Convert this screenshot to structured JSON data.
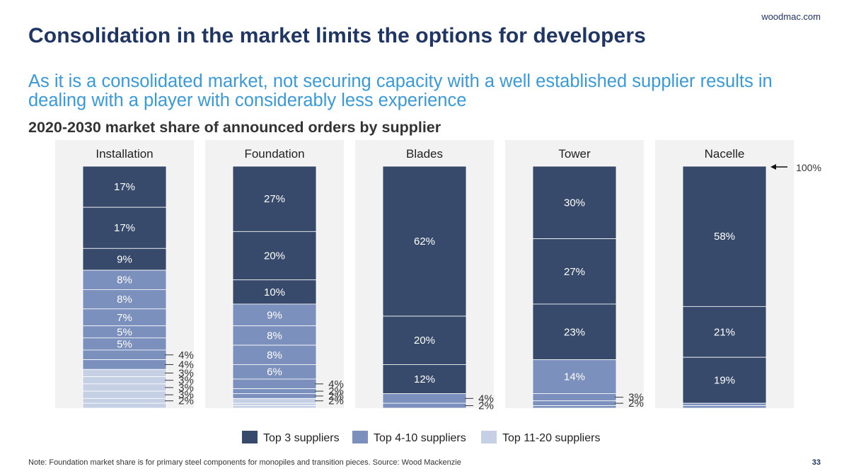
{
  "header": {
    "site": "woodmac.com",
    "title": "Consolidation in the market limits the options for developers",
    "subtitle": "As it is a consolidated market, not securing capacity with a well established supplier results in dealing with a player with considerably less experience"
  },
  "footer": {
    "note": "Note: Foundation market share is for primary steel components for monopiles and transition pieces. Source: Wood Mackenzie",
    "page": "33"
  },
  "colors": {
    "top3": "#374a6b",
    "top4_10": "#7b90bc",
    "top11_20": "#c6d0e5",
    "panel": "#f2f2f2"
  },
  "chart_data": {
    "type": "bar",
    "stacked": true,
    "title": "2020-2030 market share of announced orders by supplier",
    "ylim": [
      0,
      100
    ],
    "total_label": "100%",
    "legend": {
      "placement": "bottom",
      "entries": [
        {
          "name": "Top 3 suppliers",
          "key": "top3"
        },
        {
          "name": "Top 4-10 suppliers",
          "key": "top4_10"
        },
        {
          "name": "Top 11-20 suppliers",
          "key": "top11_20"
        }
      ]
    },
    "categories": [
      {
        "name": "Installation",
        "segments": [
          {
            "value": 17,
            "group": "top3",
            "label": "17%"
          },
          {
            "value": 17,
            "group": "top3",
            "label": "17%"
          },
          {
            "value": 9,
            "group": "top3",
            "label": "9%"
          },
          {
            "value": 8,
            "group": "top4_10",
            "label": "8%"
          },
          {
            "value": 8,
            "group": "top4_10",
            "label": "8%"
          },
          {
            "value": 7,
            "group": "top4_10",
            "label": "7%"
          },
          {
            "value": 5,
            "group": "top4_10",
            "label": "5%"
          },
          {
            "value": 5,
            "group": "top4_10",
            "label": "5%"
          },
          {
            "value": 4,
            "group": "top4_10",
            "label": "4%"
          },
          {
            "value": 4,
            "group": "top4_10",
            "label": "4%"
          },
          {
            "value": 3,
            "group": "top11_20",
            "label": "3%"
          },
          {
            "value": 3,
            "group": "top11_20",
            "label": "3%"
          },
          {
            "value": 3,
            "group": "top11_20",
            "label": "3%"
          },
          {
            "value": 3,
            "group": "top11_20",
            "label": "3%"
          },
          {
            "value": 2,
            "group": "top11_20",
            "label": "2%"
          },
          {
            "value": 2,
            "group": "top11_20",
            "label": ""
          }
        ]
      },
      {
        "name": "Foundation",
        "segments": [
          {
            "value": 27,
            "group": "top3",
            "label": "27%"
          },
          {
            "value": 20,
            "group": "top3",
            "label": "20%"
          },
          {
            "value": 10,
            "group": "top3",
            "label": "10%"
          },
          {
            "value": 9,
            "group": "top4_10",
            "label": "9%"
          },
          {
            "value": 8,
            "group": "top4_10",
            "label": "8%"
          },
          {
            "value": 8,
            "group": "top4_10",
            "label": "8%"
          },
          {
            "value": 6,
            "group": "top4_10",
            "label": "6%"
          },
          {
            "value": 4,
            "group": "top4_10",
            "label": "4%"
          },
          {
            "value": 2,
            "group": "top4_10",
            "label": "2%"
          },
          {
            "value": 2,
            "group": "top4_10",
            "label": "2%"
          },
          {
            "value": 2,
            "group": "top11_20",
            "label": "2%"
          },
          {
            "value": 1,
            "group": "top11_20",
            "label": ""
          },
          {
            "value": 1,
            "group": "top11_20",
            "label": ""
          }
        ]
      },
      {
        "name": "Blades",
        "segments": [
          {
            "value": 62,
            "group": "top3",
            "label": "62%"
          },
          {
            "value": 20,
            "group": "top3",
            "label": "20%"
          },
          {
            "value": 12,
            "group": "top3",
            "label": "12%"
          },
          {
            "value": 4,
            "group": "top4_10",
            "label": "4%"
          },
          {
            "value": 2,
            "group": "top4_10",
            "label": "2%"
          }
        ]
      },
      {
        "name": "Tower",
        "segments": [
          {
            "value": 30,
            "group": "top3",
            "label": "30%"
          },
          {
            "value": 27,
            "group": "top3",
            "label": "27%"
          },
          {
            "value": 23,
            "group": "top3",
            "label": "23%"
          },
          {
            "value": 14,
            "group": "top4_10",
            "label": "14%"
          },
          {
            "value": 3,
            "group": "top4_10",
            "label": "3%"
          },
          {
            "value": 2,
            "group": "top4_10",
            "label": "2%"
          },
          {
            "value": 1,
            "group": "top4_10",
            "label": ""
          }
        ]
      },
      {
        "name": "Nacelle",
        "segments": [
          {
            "value": 58,
            "group": "top3",
            "label": "58%"
          },
          {
            "value": 21,
            "group": "top3",
            "label": "21%"
          },
          {
            "value": 19,
            "group": "top3",
            "label": "19%"
          },
          {
            "value": 1,
            "group": "top4_10",
            "label": ""
          },
          {
            "value": 1,
            "group": "top4_10",
            "label": ""
          }
        ]
      }
    ]
  }
}
